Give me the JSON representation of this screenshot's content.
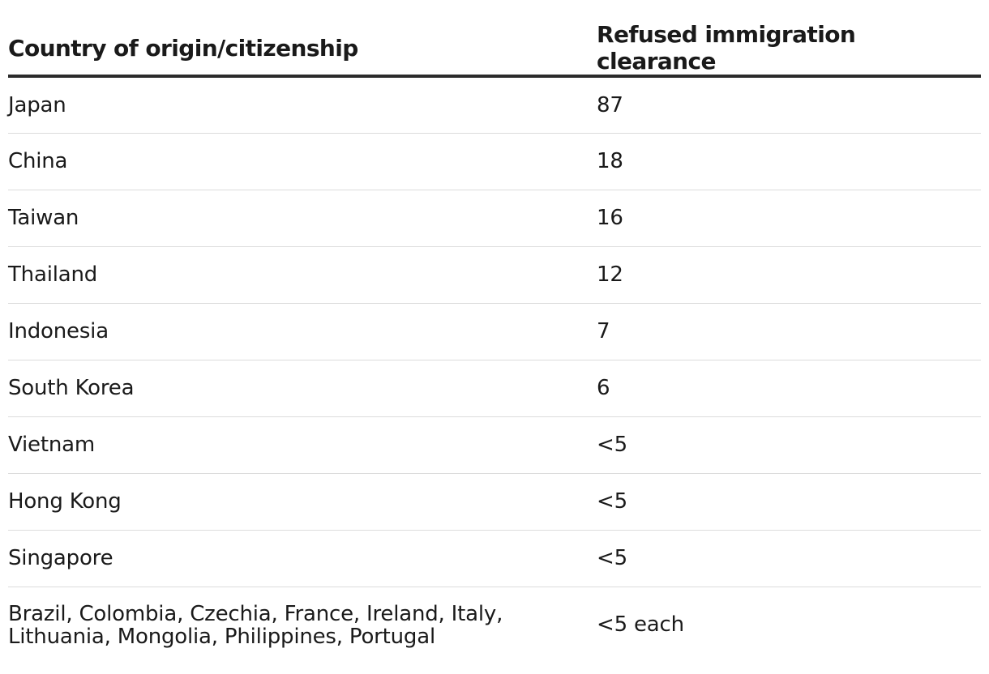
{
  "chart_data": {
    "type": "table",
    "columns": [
      "Country of origin/citizenship",
      "Refused immigration clearance"
    ],
    "rows": [
      {
        "country": "Japan",
        "refused": "87"
      },
      {
        "country": "China",
        "refused": "18"
      },
      {
        "country": "Taiwan",
        "refused": "16"
      },
      {
        "country": "Thailand",
        "refused": "12"
      },
      {
        "country": "Indonesia",
        "refused": "7"
      },
      {
        "country": "South Korea",
        "refused": "6"
      },
      {
        "country": "Vietnam",
        "refused": "<5"
      },
      {
        "country": "Hong Kong",
        "refused": "<5"
      },
      {
        "country": "Singapore",
        "refused": "<5"
      },
      {
        "country": "Brazil, Colombia, Czechia, France, Ireland, Italy, Lithuania, Mongolia, Philippines, Portugal",
        "refused": "<5 each"
      }
    ]
  }
}
